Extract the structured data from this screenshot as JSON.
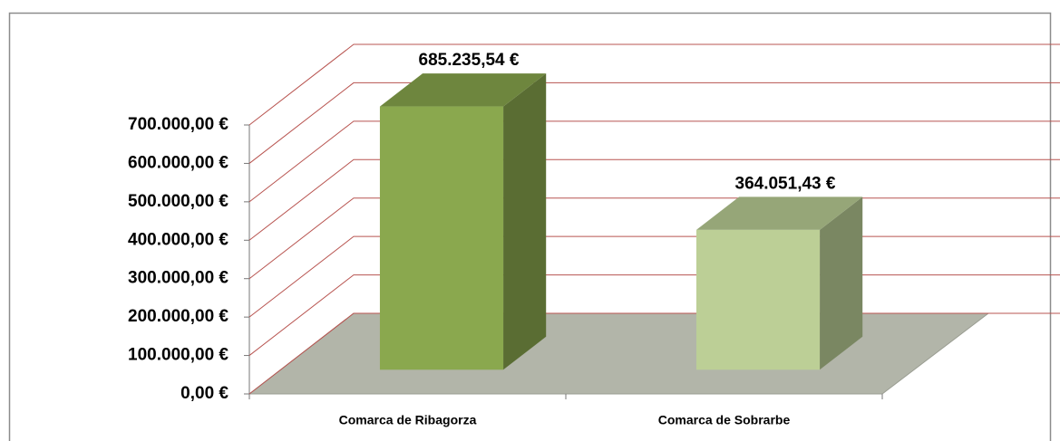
{
  "chart_data": {
    "type": "bar3d",
    "categories": [
      "Comarca de Ribagorza",
      "Comarca de Sobrarbe"
    ],
    "values": [
      685235.54,
      364051.43
    ],
    "value_labels": [
      "685.235,54 €",
      "364.051,43 €"
    ],
    "colors": [
      "#8aa84e",
      "#bccf96"
    ],
    "ylim": [
      0,
      700000
    ],
    "yticks": [
      {
        "value": 0,
        "label": "0,00 €"
      },
      {
        "value": 100000,
        "label": "100.000,00 €"
      },
      {
        "value": 200000,
        "label": "200.000,00 €"
      },
      {
        "value": 300000,
        "label": "300.000,00 €"
      },
      {
        "value": 400000,
        "label": "400.000,00 €"
      },
      {
        "value": 500000,
        "label": "500.000,00 €"
      },
      {
        "value": 600000,
        "label": "600.000,00 €"
      },
      {
        "value": 700000,
        "label": "700.000,00 €"
      }
    ],
    "grid": true
  }
}
